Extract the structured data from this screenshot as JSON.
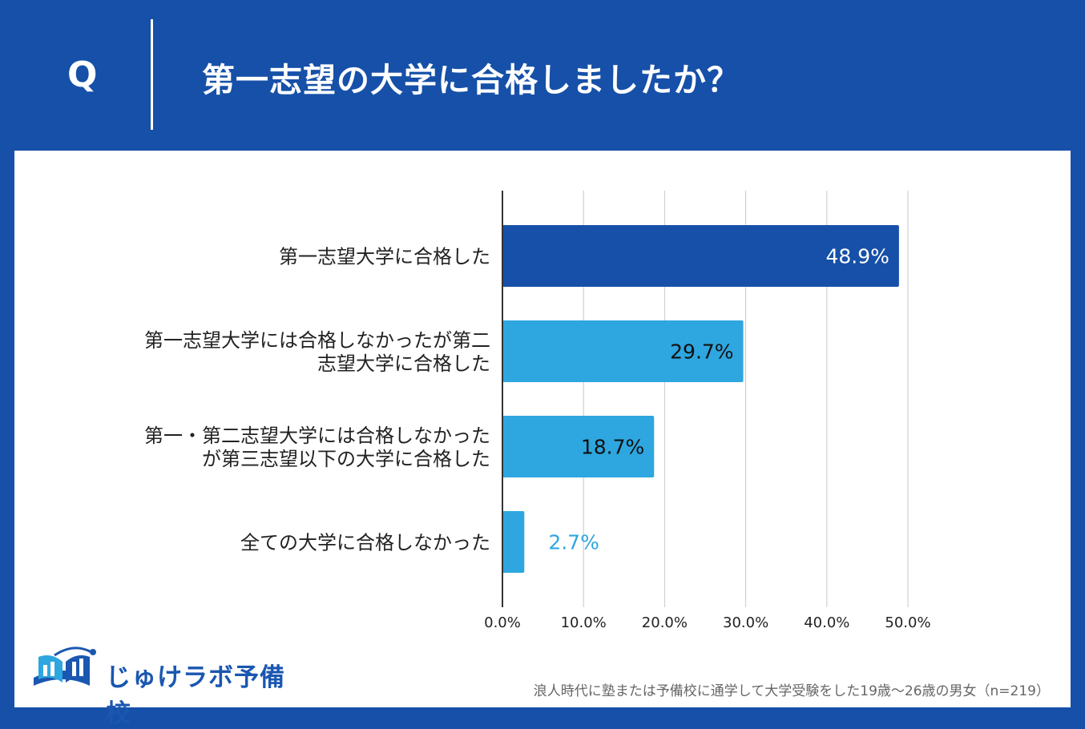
{
  "header": {
    "q_mark": "Q",
    "question": "第一志望の大学に合格しましたか？"
  },
  "colors": {
    "background": "#1650a8",
    "bar_primary": "#1650a8",
    "bar_secondary": "#2ea6df",
    "grid": "#c8c8c8"
  },
  "chart_data": {
    "type": "bar",
    "orientation": "horizontal",
    "title": "第一志望の大学に合格しましたか？",
    "xlabel": "",
    "ylabel": "",
    "categories": [
      [
        "第一志望大学に合格した"
      ],
      [
        "第一志望大学には合格しなかったが第二",
        "志望大学に合格した"
      ],
      [
        "第一・第二志望大学には合格しなかった",
        "が第三志望以下の大学に合格した"
      ],
      [
        "全ての大学に合格しなかった"
      ]
    ],
    "values": [
      48.9,
      29.7,
      18.7,
      2.7
    ],
    "value_labels": [
      "48.9%",
      "29.7%",
      "18.7%",
      "2.7%"
    ],
    "xlim": [
      0,
      50
    ],
    "ticks": [
      "0.0%",
      "10.0%",
      "20.0%",
      "30.0%",
      "40.0%",
      "50.0%"
    ],
    "grid": true
  },
  "logo": {
    "text": "じゅけラボ予備校"
  },
  "footnote": "浪人時代に塾または予備校に通学して大学受験をした19歳〜26歳の男女（n=219）"
}
